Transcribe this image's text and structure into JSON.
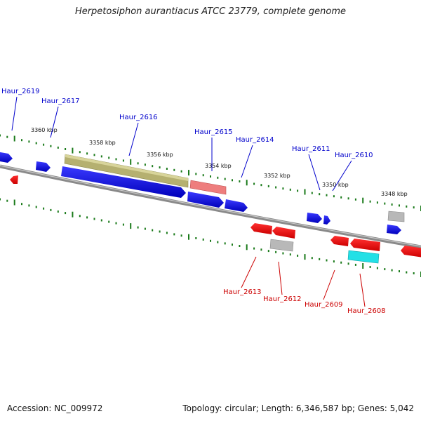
{
  "title": "Herpetosiphon aurantiacus ATCC 23779, complete genome",
  "footer": {
    "accession": "Accession: NC_009972",
    "stats": "Topology: circular; Length: 6,346,587 bp; Genes: 5,042"
  },
  "ticks": [
    "3360 kbp",
    "3358 kbp",
    "3356 kbp",
    "3354 kbp",
    "3352 kbp",
    "3350 kbp",
    "3348 kbp"
  ],
  "genes_forward": [
    "Haur_2619",
    "Haur_2617",
    "Haur_2616",
    "Haur_2615",
    "Haur_2614",
    "Haur_2611",
    "Haur_2610"
  ],
  "genes_reverse": [
    "Haur_2613",
    "Haur_2612",
    "Haur_2609",
    "Haur_2608"
  ],
  "colors": {
    "forward": "#0000cc",
    "reverse": "#cc0000",
    "backbone": "#777777",
    "tick": "#1a7a1a",
    "olive": "#b5b070",
    "pink": "#ee7d7d",
    "grey": "#b8b8b8",
    "cyan": "#22e0e6"
  }
}
